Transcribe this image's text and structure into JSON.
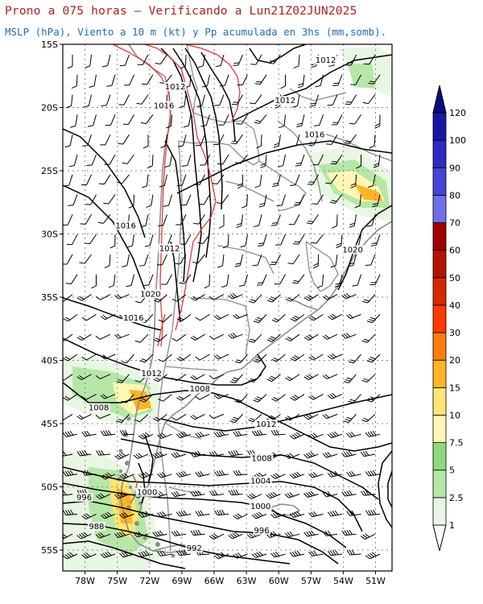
{
  "header": {
    "title": "Prono a 075 horas — Verificando a Lun21Z02JUN2025",
    "subtitle": "MSLP (hPa), Viento a 10 m (kt) y Pp acumulada en 3hs (mm,somb)."
  },
  "axes": {
    "lat_labels": [
      "15S",
      "20S",
      "25S",
      "30S",
      "35S",
      "40S",
      "45S",
      "50S",
      "55S"
    ],
    "lon_labels": [
      "78W",
      "75W",
      "72W",
      "69W",
      "66W",
      "63W",
      "60W",
      "57W",
      "54W",
      "51W"
    ]
  },
  "colorbar": {
    "labels": [
      "1",
      "2.5",
      "5",
      "7.5",
      "10",
      "15",
      "20",
      "30",
      "40",
      "50",
      "60",
      "70",
      "80",
      "90",
      "100",
      "120"
    ],
    "colors": [
      "#ffffff",
      "#e8f7e3",
      "#b6e7a7",
      "#8fd87d",
      "#fff8b5",
      "#ffe572",
      "#ffb428",
      "#ff7d10",
      "#ff3a00",
      "#d62800",
      "#b31400",
      "#a00000",
      "#6f6fe8",
      "#4545d6",
      "#2b2bc2",
      "#1717a4",
      "#0c0c82"
    ]
  },
  "isobar_labels": [
    {
      "text": "1012",
      "lon": -56.2,
      "lat": -16.4
    },
    {
      "text": "1012",
      "lon": -69.6,
      "lat": -18.5
    },
    {
      "text": "1012",
      "lon": -59.8,
      "lat": -19.6
    },
    {
      "text": "1016",
      "lon": -70.6,
      "lat": -20.0
    },
    {
      "text": "1016",
      "lon": -57.2,
      "lat": -22.3
    },
    {
      "text": "1016",
      "lon": -74.0,
      "lat": -29.5
    },
    {
      "text": "1012",
      "lon": -70.1,
      "lat": -31.3
    },
    {
      "text": "1020",
      "lon": -53.8,
      "lat": -31.4
    },
    {
      "text": "1020",
      "lon": -71.8,
      "lat": -34.9
    },
    {
      "text": "1016",
      "lon": -73.3,
      "lat": -36.8
    },
    {
      "text": "1012",
      "lon": -71.7,
      "lat": -41.2
    },
    {
      "text": "1008",
      "lon": -67.4,
      "lat": -42.4
    },
    {
      "text": "1008",
      "lon": -76.4,
      "lat": -43.9
    },
    {
      "text": "1012",
      "lon": -61.5,
      "lat": -45.2
    },
    {
      "text": "1008",
      "lon": -61.9,
      "lat": -47.9
    },
    {
      "text": "1004",
      "lon": -62.0,
      "lat": -49.7
    },
    {
      "text": "1000",
      "lon": -72.1,
      "lat": -50.6
    },
    {
      "text": "996",
      "lon": -77.7,
      "lat": -51.0
    },
    {
      "text": "1000",
      "lon": -62.0,
      "lat": -51.7
    },
    {
      "text": "996",
      "lon": -61.9,
      "lat": -53.6
    },
    {
      "text": "988",
      "lon": -76.6,
      "lat": -53.3
    },
    {
      "text": "992",
      "lon": -67.9,
      "lat": -55.0
    }
  ]
}
